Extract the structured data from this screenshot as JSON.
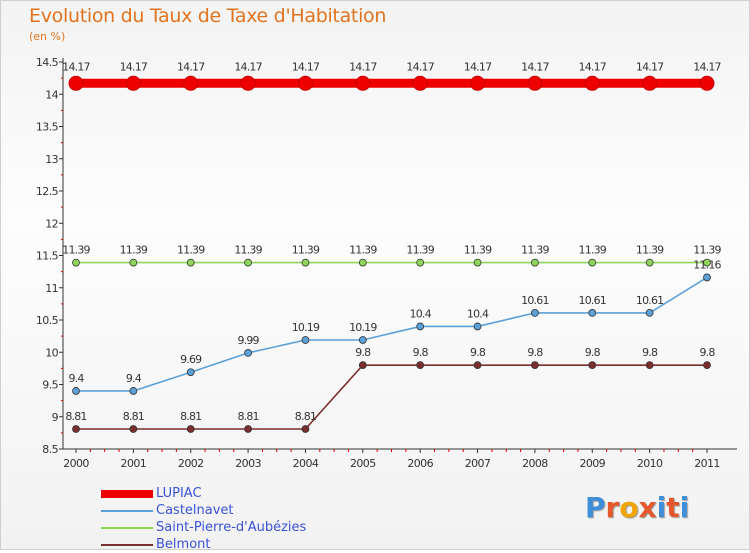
{
  "header": {
    "title": "Evolution du Taux de Taxe d'Habitation",
    "subtitle": "(en %)"
  },
  "logo": {
    "text": "Proxiti"
  },
  "chart_data": {
    "type": "line",
    "title": "Evolution du Taux de Taxe d'Habitation",
    "subtitle": "(en %)",
    "x": [
      "2000",
      "2001",
      "2002",
      "2003",
      "2004",
      "2005",
      "2006",
      "2007",
      "2008",
      "2009",
      "2010",
      "2011"
    ],
    "ylim": [
      8.5,
      14.5
    ],
    "yticks": [
      "8.5",
      "9",
      "9.5",
      "10",
      "10.5",
      "11",
      "11.5",
      "12",
      "12.5",
      "13",
      "13.5",
      "14",
      "14.5"
    ],
    "grid": false,
    "legend_position": "bottom-left",
    "series": [
      {
        "name": "LUPIAC",
        "color": "#ee0000",
        "values": [
          14.17,
          14.17,
          14.17,
          14.17,
          14.17,
          14.17,
          14.17,
          14.17,
          14.17,
          14.17,
          14.17,
          14.17
        ],
        "labels": [
          "14.17",
          "14.17",
          "14.17",
          "14.17",
          "14.17",
          "14.17",
          "14.17",
          "14.17",
          "14.17",
          "14.17",
          "14.17",
          "14.17"
        ]
      },
      {
        "name": "Castelnavet",
        "color": "#5ba0d6",
        "values": [
          9.4,
          9.4,
          9.69,
          9.99,
          10.19,
          10.19,
          10.4,
          10.4,
          10.61,
          10.61,
          10.61,
          11.16
        ],
        "labels": [
          "9.4",
          "9.4",
          "9.69",
          "9.99",
          "10.19",
          "10.19",
          "10.4",
          "10.4",
          "10.61",
          "10.61",
          "10.61",
          "11.16"
        ]
      },
      {
        "name": "Saint-Pierre-d'Aubézies",
        "color": "#8ed65a",
        "values": [
          11.39,
          11.39,
          11.39,
          11.39,
          11.39,
          11.39,
          11.39,
          11.39,
          11.39,
          11.39,
          11.39,
          11.39
        ],
        "labels": [
          "11.39",
          "11.39",
          "11.39",
          "11.39",
          "11.39",
          "11.39",
          "11.39",
          "11.39",
          "11.39",
          "11.39",
          "11.39",
          "11.39"
        ]
      },
      {
        "name": "Belmont",
        "color": "#7a2e2e",
        "values": [
          8.81,
          8.81,
          8.81,
          8.81,
          8.81,
          9.8,
          9.8,
          9.8,
          9.8,
          9.8,
          9.8,
          9.8
        ],
        "labels": [
          "8.81",
          "8.81",
          "8.81",
          "8.81",
          "8.81",
          "9.8",
          "9.8",
          "9.8",
          "9.8",
          "9.8",
          "9.8",
          "9.8"
        ]
      }
    ]
  }
}
